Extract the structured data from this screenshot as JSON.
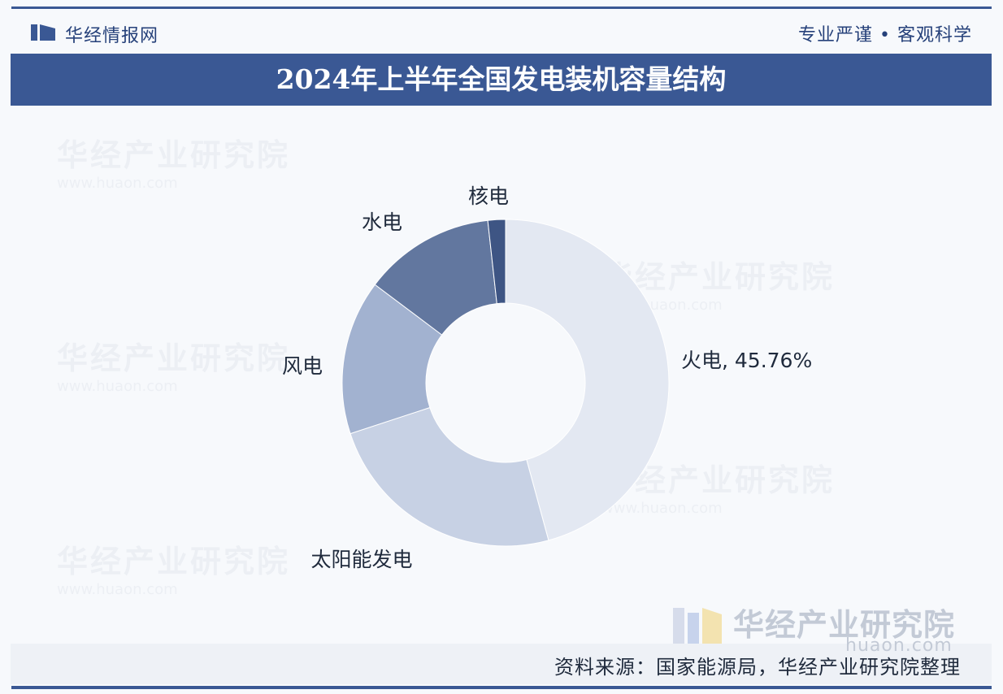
{
  "header": {
    "brand_name": "华经情报网",
    "slogan": "专业严谨 • 客观科学"
  },
  "watermark": {
    "text": "华经产业研究院",
    "url": "www.huaon.com"
  },
  "corner_brand": {
    "name": "华经产业研究院",
    "url": "huaon.com"
  },
  "footer": {
    "source": "资料来源：国家能源局，华经产业研究院整理"
  },
  "colors": {
    "brand": "#3a5894",
    "slice_thermal": "#e3e8f2",
    "slice_solar": "#c7d1e4",
    "slice_wind": "#a2b2d0",
    "slice_hydro": "#62779f",
    "slice_nuclear": "#3e5584"
  },
  "chart_data": {
    "type": "pie",
    "variant": "donut",
    "title": "2024年上半年全国发电装机容量结构",
    "unit": "%",
    "categories": [
      "火电",
      "太阳能发电",
      "风电",
      "水电",
      "核电"
    ],
    "values": [
      45.76,
      24.2,
      15.3,
      13.0,
      1.74
    ],
    "data_labels": [
      "火电, 45.76%",
      "太阳能发电",
      "风电",
      "水电",
      "核电"
    ],
    "start_angle_deg": 0,
    "direction": "clockwise",
    "legend": "none"
  }
}
